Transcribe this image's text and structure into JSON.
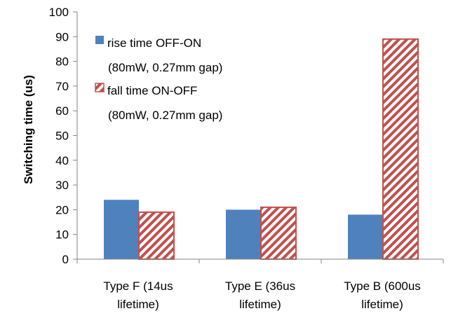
{
  "chart_data": {
    "type": "bar",
    "title": "",
    "xlabel": "",
    "ylabel": "Switching time (us)",
    "ylim": [
      0,
      100
    ],
    "yticks": [
      0,
      10,
      20,
      30,
      40,
      50,
      60,
      70,
      80,
      90,
      100
    ],
    "grid": false,
    "legend_position": "top-left inside plot",
    "categories": [
      [
        "Type F (14us",
        "lifetime)"
      ],
      [
        "Type E (36us",
        "lifetime)"
      ],
      [
        "Type B (600us",
        "lifetime)"
      ]
    ],
    "series": [
      {
        "name": [
          "rise time OFF-ON",
          "(80mW, 0.27mm gap)"
        ],
        "values": [
          24,
          20,
          18
        ],
        "color": "#4F81BD",
        "fill": "solid"
      },
      {
        "name": [
          "fall time ON-OFF",
          "(80mW, 0.27mm gap)"
        ],
        "values": [
          19,
          21,
          89
        ],
        "color": "#C0504D",
        "fill": "diagonal-hatch"
      }
    ]
  }
}
